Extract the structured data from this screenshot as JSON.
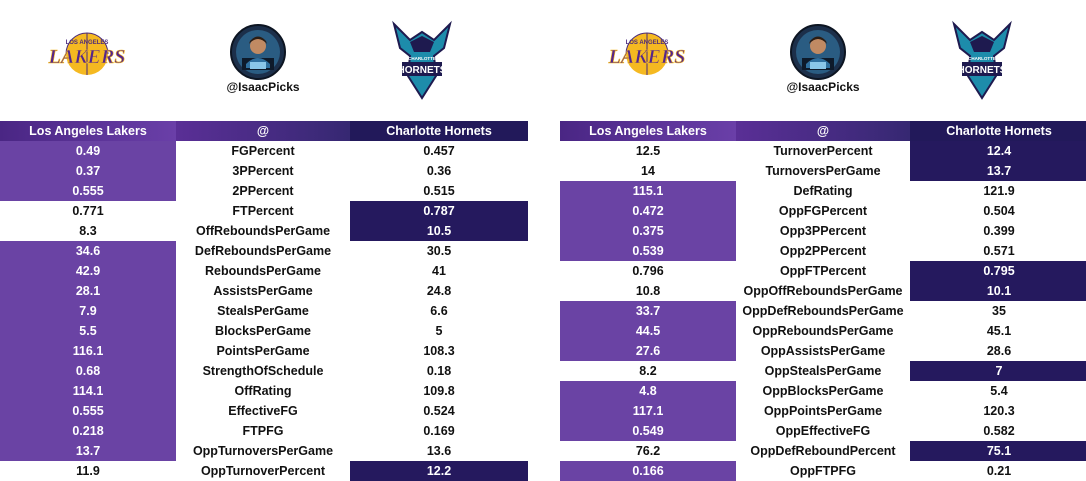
{
  "handle": "@IsaacPicks",
  "colors": {
    "lakers_purple": "#6a43a4",
    "hornets_navy": "#25195e",
    "lakers_gold": "#f5b921",
    "hornets_teal": "#1d8cab"
  },
  "logos": {
    "lakers": {
      "top": "LOS ANGELES",
      "word": "LAKERS"
    },
    "hornets": {
      "top": "CHARLOTTE",
      "word": "HORNETS"
    }
  },
  "left_table": {
    "header": {
      "team1": "Los Angeles Lakers",
      "mid": "@",
      "team2": "Charlotte Hornets"
    },
    "rows": [
      {
        "v1": "0.49",
        "stat": "FGPercent",
        "v2": "0.457",
        "hl": "l"
      },
      {
        "v1": "0.37",
        "stat": "3PPercent",
        "v2": "0.36",
        "hl": "l"
      },
      {
        "v1": "0.555",
        "stat": "2PPercent",
        "v2": "0.515",
        "hl": "l"
      },
      {
        "v1": "0.771",
        "stat": "FTPercent",
        "v2": "0.787",
        "hl": "r"
      },
      {
        "v1": "8.3",
        "stat": "OffReboundsPerGame",
        "v2": "10.5",
        "hl": "r"
      },
      {
        "v1": "34.6",
        "stat": "DefReboundsPerGame",
        "v2": "30.5",
        "hl": "l"
      },
      {
        "v1": "42.9",
        "stat": "ReboundsPerGame",
        "v2": "41",
        "hl": "l"
      },
      {
        "v1": "28.1",
        "stat": "AssistsPerGame",
        "v2": "24.8",
        "hl": "l"
      },
      {
        "v1": "7.9",
        "stat": "StealsPerGame",
        "v2": "6.6",
        "hl": "l"
      },
      {
        "v1": "5.5",
        "stat": "BlocksPerGame",
        "v2": "5",
        "hl": "l"
      },
      {
        "v1": "116.1",
        "stat": "PointsPerGame",
        "v2": "108.3",
        "hl": "l"
      },
      {
        "v1": "0.68",
        "stat": "StrengthOfSchedule",
        "v2": "0.18",
        "hl": "l"
      },
      {
        "v1": "114.1",
        "stat": "OffRating",
        "v2": "109.8",
        "hl": "l"
      },
      {
        "v1": "0.555",
        "stat": "EffectiveFG",
        "v2": "0.524",
        "hl": "l"
      },
      {
        "v1": "0.218",
        "stat": "FTPFG",
        "v2": "0.169",
        "hl": "l"
      },
      {
        "v1": "13.7",
        "stat": "OppTurnoversPerGame",
        "v2": "13.6",
        "hl": "l"
      },
      {
        "v1": "11.9",
        "stat": "OppTurnoverPercent",
        "v2": "12.2",
        "hl": "r"
      }
    ]
  },
  "right_table": {
    "header": {
      "team1": "Los Angeles Lakers",
      "mid": "@",
      "team2": "Charlotte Hornets"
    },
    "rows": [
      {
        "v1": "12.5",
        "stat": "TurnoverPercent",
        "v2": "12.4",
        "hl": "r"
      },
      {
        "v1": "14",
        "stat": "TurnoversPerGame",
        "v2": "13.7",
        "hl": "r"
      },
      {
        "v1": "115.1",
        "stat": "DefRating",
        "v2": "121.9",
        "hl": "l"
      },
      {
        "v1": "0.472",
        "stat": "OppFGPercent",
        "v2": "0.504",
        "hl": "l"
      },
      {
        "v1": "0.375",
        "stat": "Opp3PPercent",
        "v2": "0.399",
        "hl": "l"
      },
      {
        "v1": "0.539",
        "stat": "Opp2PPercent",
        "v2": "0.571",
        "hl": "l"
      },
      {
        "v1": "0.796",
        "stat": "OppFTPercent",
        "v2": "0.795",
        "hl": "r"
      },
      {
        "v1": "10.8",
        "stat": "OppOffReboundsPerGame",
        "v2": "10.1",
        "hl": "r"
      },
      {
        "v1": "33.7",
        "stat": "OppDefReboundsPerGame",
        "v2": "35",
        "hl": "l"
      },
      {
        "v1": "44.5",
        "stat": "OppReboundsPerGame",
        "v2": "45.1",
        "hl": "l"
      },
      {
        "v1": "27.6",
        "stat": "OppAssistsPerGame",
        "v2": "28.6",
        "hl": "l"
      },
      {
        "v1": "8.2",
        "stat": "OppStealsPerGame",
        "v2": "7",
        "hl": "r"
      },
      {
        "v1": "4.8",
        "stat": "OppBlocksPerGame",
        "v2": "5.4",
        "hl": "l"
      },
      {
        "v1": "117.1",
        "stat": "OppPointsPerGame",
        "v2": "120.3",
        "hl": "l"
      },
      {
        "v1": "0.549",
        "stat": "OppEffectiveFG",
        "v2": "0.582",
        "hl": "l"
      },
      {
        "v1": "76.2",
        "stat": "OppDefReboundPercent",
        "v2": "75.1",
        "hl": "r"
      },
      {
        "v1": "0.166",
        "stat": "OppFTPFG",
        "v2": "0.21",
        "hl": "l"
      }
    ]
  }
}
